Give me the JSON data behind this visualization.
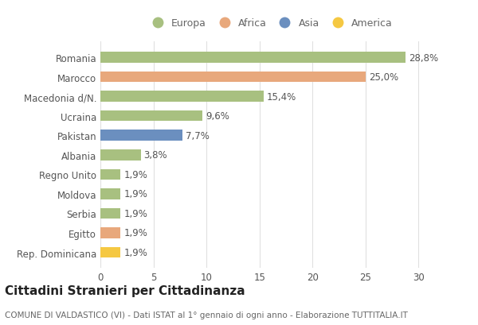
{
  "categories": [
    "Rep. Dominicana",
    "Egitto",
    "Serbia",
    "Moldova",
    "Regno Unito",
    "Albania",
    "Pakistan",
    "Ucraina",
    "Macedonia d/N.",
    "Marocco",
    "Romania"
  ],
  "values": [
    1.9,
    1.9,
    1.9,
    1.9,
    1.9,
    3.8,
    7.7,
    9.6,
    15.4,
    25.0,
    28.8
  ],
  "bar_colors": [
    "#f5c842",
    "#e8a87c",
    "#a8c080",
    "#a8c080",
    "#a8c080",
    "#a8c080",
    "#6b8fbf",
    "#a8c080",
    "#a8c080",
    "#e8a87c",
    "#a8c080"
  ],
  "value_labels": [
    "1,9%",
    "1,9%",
    "1,9%",
    "1,9%",
    "1,9%",
    "3,8%",
    "7,7%",
    "9,6%",
    "15,4%",
    "25,0%",
    "28,8%"
  ],
  "legend_labels": [
    "Europa",
    "Africa",
    "Asia",
    "America"
  ],
  "legend_colors": [
    "#a8c080",
    "#e8a87c",
    "#6b8fbf",
    "#f5c842"
  ],
  "title": "Cittadini Stranieri per Cittadinanza",
  "subtitle": "COMUNE DI VALDASTICO (VI) - Dati ISTAT al 1° gennaio di ogni anno - Elaborazione TUTTITALIA.IT",
  "xlim": [
    0,
    32
  ],
  "background_color": "#ffffff",
  "grid_color": "#e0e0e0",
  "bar_height": 0.55,
  "label_fontsize": 8.5,
  "tick_fontsize": 8.5,
  "title_fontsize": 11,
  "subtitle_fontsize": 7.5,
  "legend_fontsize": 9
}
